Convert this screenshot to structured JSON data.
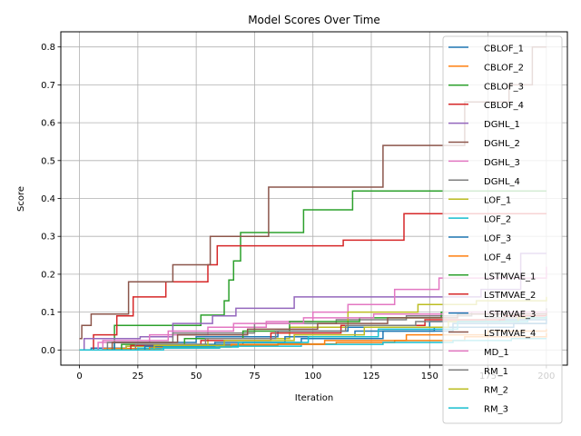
{
  "chart_data": {
    "type": "line",
    "title": "Model Scores Over Time",
    "xlabel": "Iteration",
    "ylabel": "Score",
    "xlim": [
      -8,
      209
    ],
    "ylim": [
      -0.04,
      0.84
    ],
    "xticks": [
      0,
      25,
      50,
      75,
      100,
      125,
      150,
      175,
      200
    ],
    "yticks": [
      0.0,
      0.1,
      0.2,
      0.3,
      0.4,
      0.5,
      0.6,
      0.7,
      0.8
    ],
    "ytick_labels": [
      "0.0",
      "0.1",
      "0.2",
      "0.3",
      "0.4",
      "0.5",
      "0.6",
      "0.7",
      "0.8"
    ],
    "grid": true,
    "legend_position": "upper right",
    "step_style": "post",
    "series": [
      {
        "name": "CBLOF_1",
        "color": "#1f77b4",
        "points": [
          [
            0,
            0
          ],
          [
            5,
            0.005
          ],
          [
            20,
            0.01
          ],
          [
            45,
            0.015
          ],
          [
            70,
            0.02
          ],
          [
            95,
            0.03
          ],
          [
            130,
            0.05
          ],
          [
            160,
            0.07
          ],
          [
            200,
            0.08
          ]
        ]
      },
      {
        "name": "CBLOF_2",
        "color": "#ff7f0e",
        "points": [
          [
            0,
            0
          ],
          [
            10,
            0.004
          ],
          [
            35,
            0.008
          ],
          [
            60,
            0.012
          ],
          [
            85,
            0.016
          ],
          [
            110,
            0.02
          ],
          [
            135,
            0.025
          ],
          [
            165,
            0.035
          ],
          [
            200,
            0.045
          ]
        ]
      },
      {
        "name": "CBLOF_3",
        "color": "#2ca02c",
        "points": [
          [
            0,
            0
          ],
          [
            15,
            0.065
          ],
          [
            20,
            0.065
          ],
          [
            30,
            0.065
          ],
          [
            52,
            0.092
          ],
          [
            62,
            0.13
          ],
          [
            64,
            0.185
          ],
          [
            66,
            0.235
          ],
          [
            69,
            0.31
          ],
          [
            96,
            0.37
          ],
          [
            117,
            0.42
          ],
          [
            200,
            0.42
          ]
        ]
      },
      {
        "name": "CBLOF_4",
        "color": "#d62728",
        "points": [
          [
            0,
            0
          ],
          [
            6,
            0.04
          ],
          [
            16,
            0.09
          ],
          [
            23,
            0.14
          ],
          [
            37,
            0.18
          ],
          [
            55,
            0.225
          ],
          [
            59,
            0.275
          ],
          [
            113,
            0.29
          ],
          [
            139,
            0.36
          ],
          [
            200,
            0.36
          ]
        ]
      },
      {
        "name": "DGHL_1",
        "color": "#9467bd",
        "points": [
          [
            0,
            0
          ],
          [
            2,
            0.03
          ],
          [
            26,
            0.035
          ],
          [
            40,
            0.07
          ],
          [
            57,
            0.09
          ],
          [
            67,
            0.11
          ],
          [
            92,
            0.14
          ],
          [
            172,
            0.16
          ],
          [
            189,
            0.255
          ],
          [
            200,
            0.255
          ]
        ]
      },
      {
        "name": "DGHL_2",
        "color": "#8c564b",
        "points": [
          [
            0,
            0.03
          ],
          [
            1,
            0.065
          ],
          [
            5,
            0.095
          ],
          [
            21,
            0.18
          ],
          [
            40,
            0.225
          ],
          [
            56,
            0.3
          ],
          [
            81,
            0.43
          ],
          [
            130,
            0.54
          ],
          [
            160,
            0.54
          ],
          [
            165,
            0.655
          ],
          [
            184,
            0.7
          ],
          [
            194,
            0.8
          ],
          [
            200,
            0.8
          ]
        ]
      },
      {
        "name": "DGHL_3",
        "color": "#e377c2",
        "points": [
          [
            0,
            0
          ],
          [
            8,
            0.02
          ],
          [
            30,
            0.04
          ],
          [
            55,
            0.06
          ],
          [
            80,
            0.075
          ],
          [
            100,
            0.1
          ],
          [
            115,
            0.12
          ],
          [
            135,
            0.16
          ],
          [
            154,
            0.19
          ],
          [
            200,
            0.22
          ]
        ]
      },
      {
        "name": "DGHL_4",
        "color": "#7f7f7f",
        "points": [
          [
            0,
            0
          ],
          [
            12,
            0.02
          ],
          [
            40,
            0.045
          ],
          [
            75,
            0.07
          ],
          [
            110,
            0.08
          ],
          [
            140,
            0.09
          ],
          [
            168,
            0.1
          ],
          [
            200,
            0.11
          ]
        ]
      },
      {
        "name": "LOF_1",
        "color": "#bcbd22",
        "points": [
          [
            0,
            0
          ],
          [
            20,
            0.01
          ],
          [
            55,
            0.03
          ],
          [
            90,
            0.06
          ],
          [
            115,
            0.1
          ],
          [
            145,
            0.12
          ],
          [
            170,
            0.13
          ],
          [
            200,
            0.14
          ]
        ]
      },
      {
        "name": "LOF_2",
        "color": "#17becf",
        "points": [
          [
            0,
            0
          ],
          [
            25,
            0.005
          ],
          [
            60,
            0.01
          ],
          [
            95,
            0.015
          ],
          [
            130,
            0.02
          ],
          [
            160,
            0.025
          ],
          [
            185,
            0.03
          ],
          [
            200,
            0.03
          ]
        ]
      },
      {
        "name": "LOF_3",
        "color": "#1f77b4",
        "points": [
          [
            0,
            0
          ],
          [
            15,
            0.02
          ],
          [
            50,
            0.035
          ],
          [
            85,
            0.05
          ],
          [
            115,
            0.06
          ],
          [
            150,
            0.075
          ],
          [
            180,
            0.08
          ],
          [
            200,
            0.085
          ]
        ]
      },
      {
        "name": "LOF_4",
        "color": "#ff7f0e",
        "points": [
          [
            0,
            0
          ],
          [
            30,
            0.008
          ],
          [
            65,
            0.015
          ],
          [
            105,
            0.025
          ],
          [
            140,
            0.04
          ],
          [
            175,
            0.05
          ],
          [
            200,
            0.055
          ]
        ]
      },
      {
        "name": "LSTMVAE_1",
        "color": "#2ca02c",
        "points": [
          [
            0,
            0
          ],
          [
            18,
            0.015
          ],
          [
            45,
            0.03
          ],
          [
            70,
            0.05
          ],
          [
            90,
            0.075
          ],
          [
            120,
            0.085
          ],
          [
            155,
            0.1
          ],
          [
            200,
            0.105
          ]
        ]
      },
      {
        "name": "LSTMVAE_2",
        "color": "#d62728",
        "points": [
          [
            0,
            0
          ],
          [
            22,
            0.012
          ],
          [
            52,
            0.025
          ],
          [
            82,
            0.045
          ],
          [
            112,
            0.065
          ],
          [
            148,
            0.08
          ],
          [
            182,
            0.09
          ],
          [
            200,
            0.095
          ]
        ]
      },
      {
        "name": "LSTMVAE_3",
        "color": "#1f77b4",
        "points": [
          [
            0,
            0
          ],
          [
            28,
            0.01
          ],
          [
            58,
            0.02
          ],
          [
            88,
            0.035
          ],
          [
            118,
            0.05
          ],
          [
            152,
            0.06
          ],
          [
            186,
            0.07
          ],
          [
            200,
            0.07
          ]
        ]
      },
      {
        "name": "LSTMVAE_4",
        "color": "#8c564b",
        "points": [
          [
            0,
            0
          ],
          [
            14,
            0.02
          ],
          [
            42,
            0.04
          ],
          [
            72,
            0.055
          ],
          [
            102,
            0.07
          ],
          [
            132,
            0.085
          ],
          [
            162,
            0.095
          ],
          [
            200,
            0.1
          ]
        ]
      },
      {
        "name": "MD_1",
        "color": "#e377c2",
        "points": [
          [
            0,
            0
          ],
          [
            10,
            0.025
          ],
          [
            38,
            0.05
          ],
          [
            66,
            0.07
          ],
          [
            96,
            0.085
          ],
          [
            126,
            0.095
          ],
          [
            156,
            0.1
          ],
          [
            200,
            0.105
          ]
        ]
      },
      {
        "name": "RM_1",
        "color": "#7f7f7f",
        "points": [
          [
            0,
            0
          ],
          [
            24,
            0.015
          ],
          [
            54,
            0.03
          ],
          [
            84,
            0.05
          ],
          [
            114,
            0.065
          ],
          [
            144,
            0.075
          ],
          [
            174,
            0.085
          ],
          [
            200,
            0.09
          ]
        ]
      },
      {
        "name": "RM_2",
        "color": "#bcbd22",
        "points": [
          [
            0,
            0
          ],
          [
            32,
            0.012
          ],
          [
            62,
            0.025
          ],
          [
            92,
            0.04
          ],
          [
            122,
            0.06
          ],
          [
            158,
            0.075
          ],
          [
            188,
            0.085
          ],
          [
            200,
            0.09
          ]
        ]
      },
      {
        "name": "RM_3",
        "color": "#17becf",
        "points": [
          [
            0,
            0
          ],
          [
            36,
            0.008
          ],
          [
            68,
            0.02
          ],
          [
            98,
            0.035
          ],
          [
            128,
            0.055
          ],
          [
            162,
            0.075
          ],
          [
            192,
            0.085
          ],
          [
            200,
            0.09
          ]
        ]
      }
    ]
  }
}
